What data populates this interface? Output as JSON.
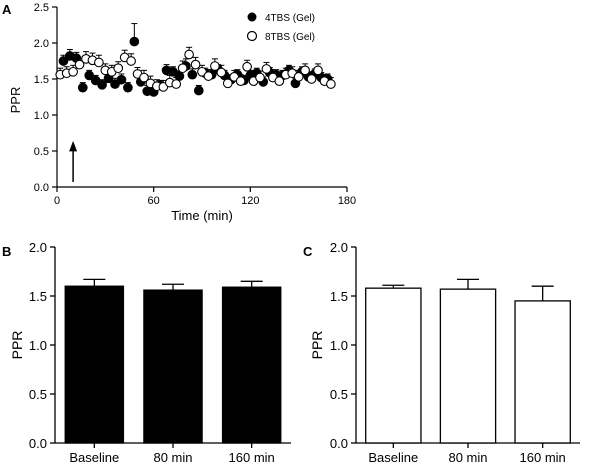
{
  "chart_data": [
    {
      "panel": "A",
      "type": "scatter",
      "xlabel": "Time (min)",
      "ylabel": "PPR",
      "xlim": [
        0,
        180
      ],
      "ylim": [
        0,
        2.5
      ],
      "xticks": [
        "0",
        "60",
        "120",
        "180"
      ],
      "yticks": [
        "0.0",
        "0.5",
        "1.0",
        "1.5",
        "2.0",
        "2.5"
      ],
      "legend_position": "top-right",
      "annotation": "arrow at t = 10 min",
      "arrow_x": 10,
      "series": [
        {
          "name": "4TBS (Gel)",
          "marker": "filled-circle",
          "x": [
            4,
            8,
            12,
            16,
            20,
            24,
            28,
            32,
            36,
            40,
            44,
            48,
            52,
            56,
            60,
            64,
            68,
            72,
            76,
            80,
            84,
            88,
            92,
            96,
            100,
            104,
            108,
            112,
            116,
            120,
            124,
            128,
            132,
            136,
            140,
            144,
            148,
            152,
            156,
            160,
            164,
            168
          ],
          "y": [
            1.75,
            1.82,
            1.79,
            1.38,
            1.55,
            1.48,
            1.42,
            1.51,
            1.43,
            1.49,
            1.38,
            2.02,
            1.46,
            1.33,
            1.32,
            1.41,
            1.62,
            1.6,
            1.54,
            1.68,
            1.56,
            1.34,
            1.58,
            1.56,
            1.63,
            1.55,
            1.49,
            1.56,
            1.48,
            1.55,
            1.58,
            1.46,
            1.59,
            1.56,
            1.55,
            1.62,
            1.44,
            1.6,
            1.53,
            1.57,
            1.52,
            1.5
          ],
          "error": [
            0.08,
            0.09,
            0.08,
            0.07,
            0.07,
            0.07,
            0.07,
            0.07,
            0.08,
            0.08,
            0.07,
            0.25,
            0.09,
            0.08,
            0.07,
            0.07,
            0.08,
            0.07,
            0.07,
            0.1,
            0.08,
            0.07,
            0.07,
            0.07,
            0.07,
            0.07,
            0.07,
            0.07,
            0.07,
            0.07,
            0.07,
            0.07,
            0.07,
            0.07,
            0.07,
            0.07,
            0.07,
            0.07,
            0.07,
            0.07,
            0.07,
            0.07
          ]
        },
        {
          "name": "8TBS (Gel)",
          "marker": "open-circle",
          "x": [
            2,
            6,
            10,
            14,
            18,
            22,
            26,
            30,
            34,
            38,
            42,
            46,
            50,
            54,
            58,
            62,
            66,
            70,
            74,
            78,
            82,
            86,
            90,
            94,
            98,
            102,
            106,
            110,
            114,
            118,
            122,
            126,
            130,
            134,
            138,
            142,
            146,
            150,
            154,
            158,
            162,
            166,
            170
          ],
          "y": [
            1.56,
            1.58,
            1.6,
            1.7,
            1.78,
            1.76,
            1.73,
            1.62,
            1.6,
            1.65,
            1.8,
            1.75,
            1.57,
            1.52,
            1.44,
            1.4,
            1.39,
            1.45,
            1.43,
            1.65,
            1.84,
            1.7,
            1.6,
            1.54,
            1.68,
            1.59,
            1.44,
            1.53,
            1.47,
            1.67,
            1.47,
            1.52,
            1.64,
            1.52,
            1.47,
            1.56,
            1.58,
            1.53,
            1.62,
            1.5,
            1.62,
            1.47,
            1.43
          ],
          "error": [
            0.09,
            0.09,
            0.09,
            0.09,
            0.1,
            0.1,
            0.1,
            0.09,
            0.09,
            0.09,
            0.1,
            0.1,
            0.09,
            0.1,
            0.1,
            0.09,
            0.09,
            0.1,
            0.09,
            0.1,
            0.1,
            0.1,
            0.09,
            0.09,
            0.1,
            0.1,
            0.09,
            0.09,
            0.09,
            0.09,
            0.09,
            0.09,
            0.09,
            0.09,
            0.09,
            0.09,
            0.09,
            0.09,
            0.09,
            0.09,
            0.09,
            0.09,
            0.09
          ]
        }
      ]
    },
    {
      "panel": "B",
      "type": "bar",
      "fill": "filled",
      "categories": [
        "Baseline",
        "80 min",
        "160 min"
      ],
      "values": [
        1.6,
        1.56,
        1.59
      ],
      "error": [
        0.07,
        0.06,
        0.06
      ],
      "ylabel": "PPR",
      "ylim": [
        0,
        2.0
      ],
      "yticks": [
        "0.0",
        "0.5",
        "1.0",
        "1.5",
        "2.0"
      ]
    },
    {
      "panel": "C",
      "type": "bar",
      "fill": "open",
      "categories": [
        "Baseline",
        "80 min",
        "160 min"
      ],
      "values": [
        1.58,
        1.57,
        1.45
      ],
      "error": [
        0.03,
        0.1,
        0.15
      ],
      "ylabel": "PPR",
      "ylim": [
        0,
        2.0
      ],
      "yticks": [
        "0.0",
        "0.5",
        "1.0",
        "1.5",
        "2.0"
      ]
    }
  ],
  "colors": {
    "ink": "#000000",
    "paper": "#ffffff"
  }
}
